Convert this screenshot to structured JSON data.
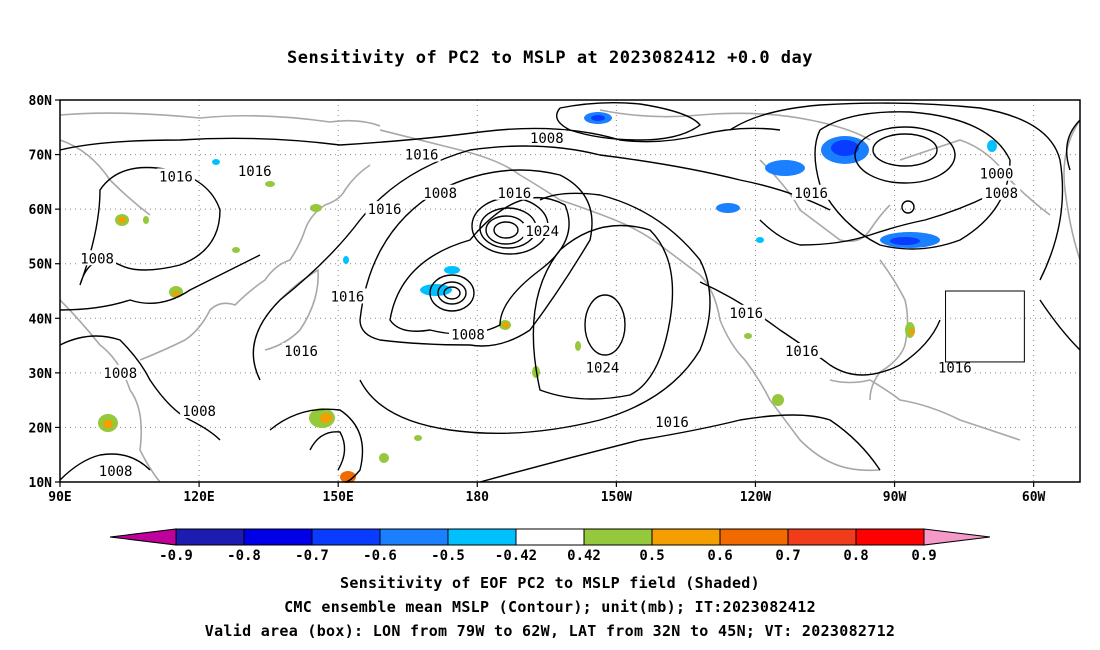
{
  "title": "Sensitivity of PC2 to MSLP at 2023082412 +0.0 day",
  "map": {
    "lat_ticks": [
      "80N",
      "70N",
      "60N",
      "50N",
      "40N",
      "30N",
      "20N",
      "10N"
    ],
    "lon_ticks": [
      "90E",
      "120E",
      "150E",
      "180",
      "150W",
      "120W",
      "90W",
      "60W"
    ],
    "valid_box": {
      "lon_from": "79W",
      "lon_to": "62W",
      "lat_from": "32N",
      "lat_to": "45N"
    },
    "contour_labels": [
      {
        "text": "1008",
        "lon": -165,
        "lat": 73
      },
      {
        "text": "1016",
        "lon": -192,
        "lat": 70
      },
      {
        "text": "1016",
        "lon": -108,
        "lat": 63
      },
      {
        "text": "1000",
        "lon": -68,
        "lat": 66.5
      },
      {
        "text": "1008",
        "lon": -67,
        "lat": 63
      },
      {
        "text": "1016",
        "lon": 115,
        "lat": 66
      },
      {
        "text": "1016",
        "lon": 132,
        "lat": 67
      },
      {
        "text": "1008",
        "lon": -188,
        "lat": 63
      },
      {
        "text": "1016",
        "lon": -172,
        "lat": 63
      },
      {
        "text": "1016",
        "lon": 160,
        "lat": 60
      },
      {
        "text": "1024",
        "lon": -166,
        "lat": 56
      },
      {
        "text": "1008",
        "lon": 98,
        "lat": 51
      },
      {
        "text": "1016",
        "lon": 152,
        "lat": 44
      },
      {
        "text": "1016",
        "lon": -122,
        "lat": 41
      },
      {
        "text": "1008",
        "lon": 178,
        "lat": 37
      },
      {
        "text": "1016",
        "lon": 142,
        "lat": 34
      },
      {
        "text": "1016",
        "lon": -110,
        "lat": 34
      },
      {
        "text": "1008",
        "lon": 103,
        "lat": 30
      },
      {
        "text": "1024",
        "lon": -153,
        "lat": 31
      },
      {
        "text": "1016",
        "lon": -77,
        "lat": 31
      },
      {
        "text": "1008",
        "lon": 120,
        "lat": 23
      },
      {
        "text": "1016",
        "lon": -138,
        "lat": 21
      },
      {
        "text": "1008",
        "lon": 102,
        "lat": 12
      }
    ]
  },
  "colorbar": {
    "labels": [
      "-0.9",
      "-0.8",
      "-0.7",
      "-0.6",
      "-0.5",
      "-0.42",
      "0.42",
      "0.5",
      "0.6",
      "0.7",
      "0.8",
      "0.9"
    ],
    "colors": [
      "#c0009a",
      "#1c1cb0",
      "#0000e8",
      "#0a3cff",
      "#1a80ff",
      "#00c0ff",
      "#ffffff",
      "#95c83a",
      "#f59e00",
      "#f06a00",
      "#f03c1a",
      "#ff0000",
      "#f59ac8"
    ]
  },
  "captions": [
    "Sensitivity of EOF PC2 to MSLP field (Shaded)",
    "CMC ensemble mean MSLP (Contour); unit(mb); IT:2023082412",
    "Valid area (box): LON from 79W to 62W, LAT from 32N to 45N; VT: 2023082712"
  ]
}
